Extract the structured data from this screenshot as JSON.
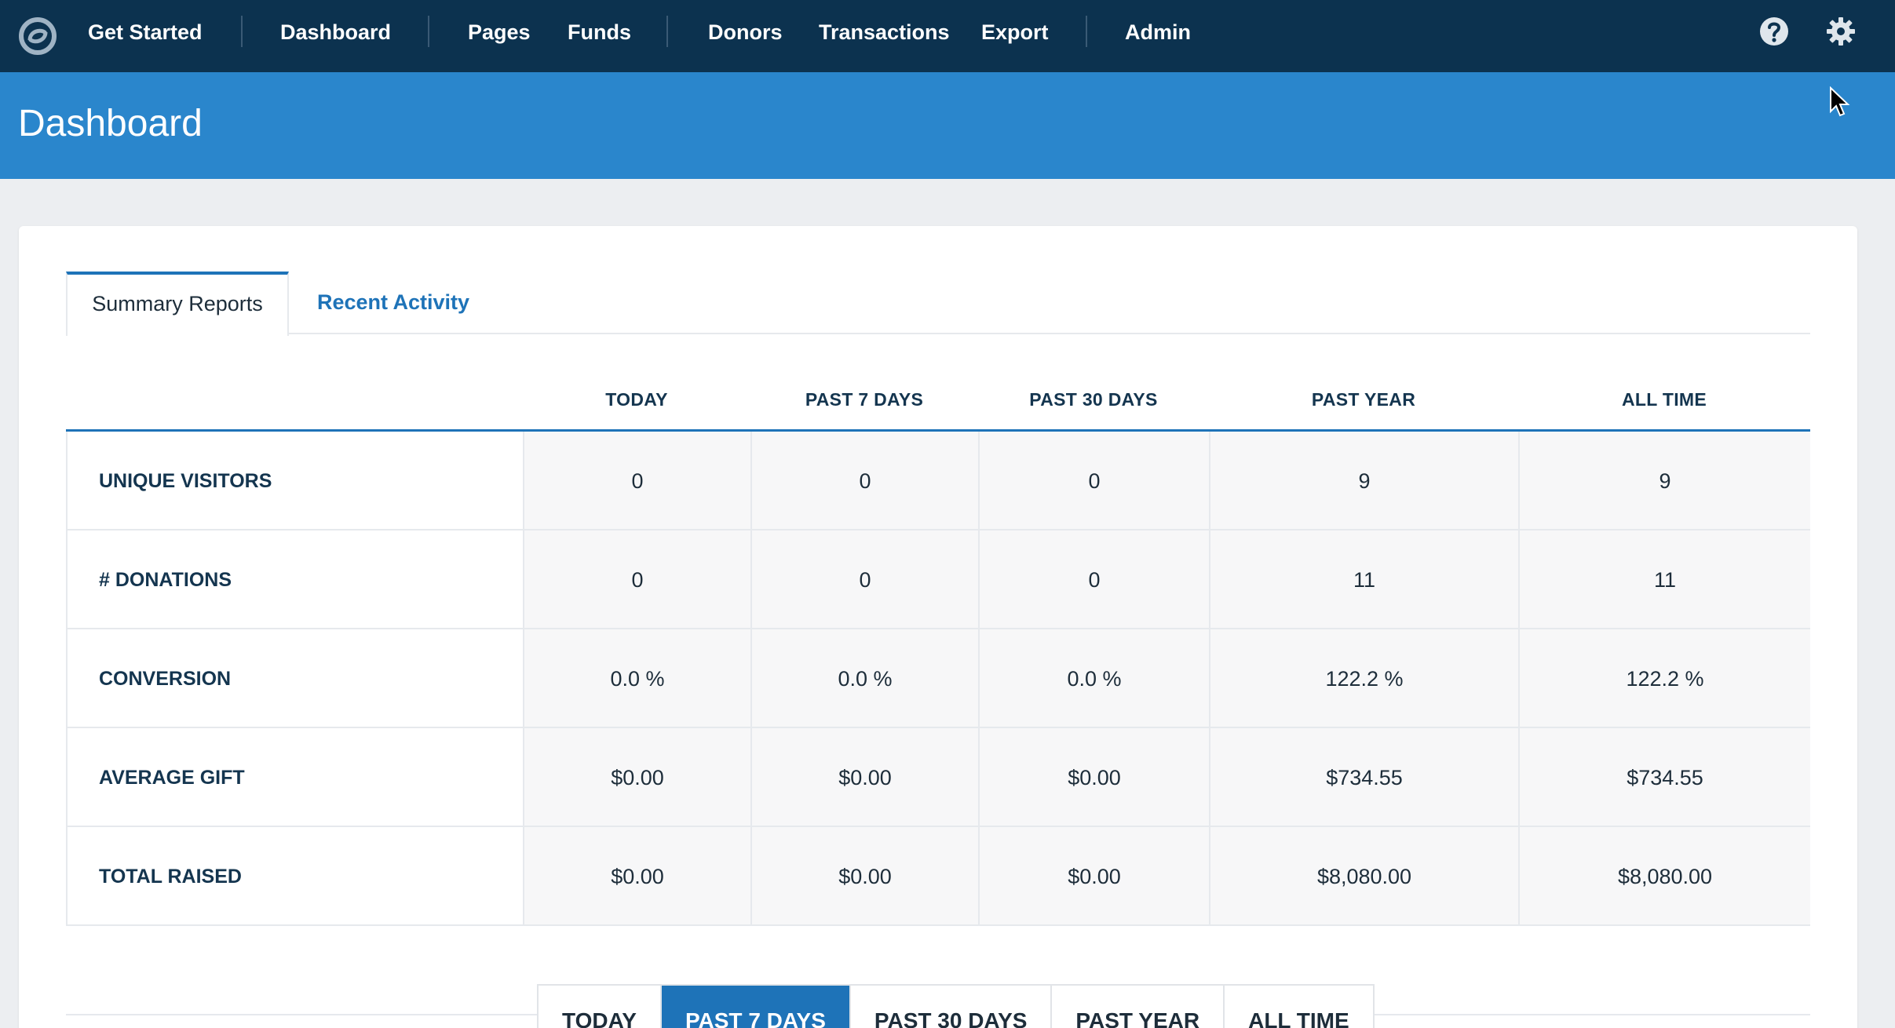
{
  "nav": {
    "items": [
      {
        "label": "Get Started"
      },
      {
        "label": "Dashboard"
      },
      {
        "label": "Pages"
      },
      {
        "label": "Funds"
      },
      {
        "label": "Donors"
      },
      {
        "label": "Transactions"
      },
      {
        "label": "Export"
      },
      {
        "label": "Admin"
      }
    ],
    "icons": [
      "logo-icon",
      "help-icon",
      "gear-icon"
    ]
  },
  "header": {
    "title": "Dashboard"
  },
  "tabs": [
    {
      "label": "Summary Reports",
      "active": true
    },
    {
      "label": "Recent Activity",
      "active": false
    }
  ],
  "table": {
    "columns": [
      "TODAY",
      "PAST 7 DAYS",
      "PAST 30 DAYS",
      "PAST YEAR",
      "ALL TIME"
    ],
    "rows": [
      {
        "label": "UNIQUE VISITORS",
        "values": [
          "0",
          "0",
          "0",
          "9",
          "9"
        ]
      },
      {
        "label": "# DONATIONS",
        "values": [
          "0",
          "0",
          "0",
          "11",
          "11"
        ]
      },
      {
        "label": "CONVERSION",
        "values": [
          "0.0 %",
          "0.0 %",
          "0.0 %",
          "122.2 %",
          "122.2 %"
        ]
      },
      {
        "label": "AVERAGE GIFT",
        "values": [
          "$0.00",
          "$0.00",
          "$0.00",
          "$734.55",
          "$734.55"
        ]
      },
      {
        "label": "TOTAL RAISED",
        "values": [
          "$0.00",
          "$0.00",
          "$0.00",
          "$8,080.00",
          "$8,080.00"
        ]
      }
    ]
  },
  "period_tabs": [
    {
      "label": "TODAY",
      "selected": false
    },
    {
      "label": "PAST 7 DAYS",
      "selected": true
    },
    {
      "label": "PAST 30 DAYS",
      "selected": false
    },
    {
      "label": "PAST YEAR",
      "selected": false
    },
    {
      "label": "ALL TIME",
      "selected": false
    }
  ],
  "colors": {
    "nav_bg": "#0c324f",
    "header_bg": "#2a86cc",
    "accent": "#1e73b8",
    "label_text": "#14354f"
  }
}
